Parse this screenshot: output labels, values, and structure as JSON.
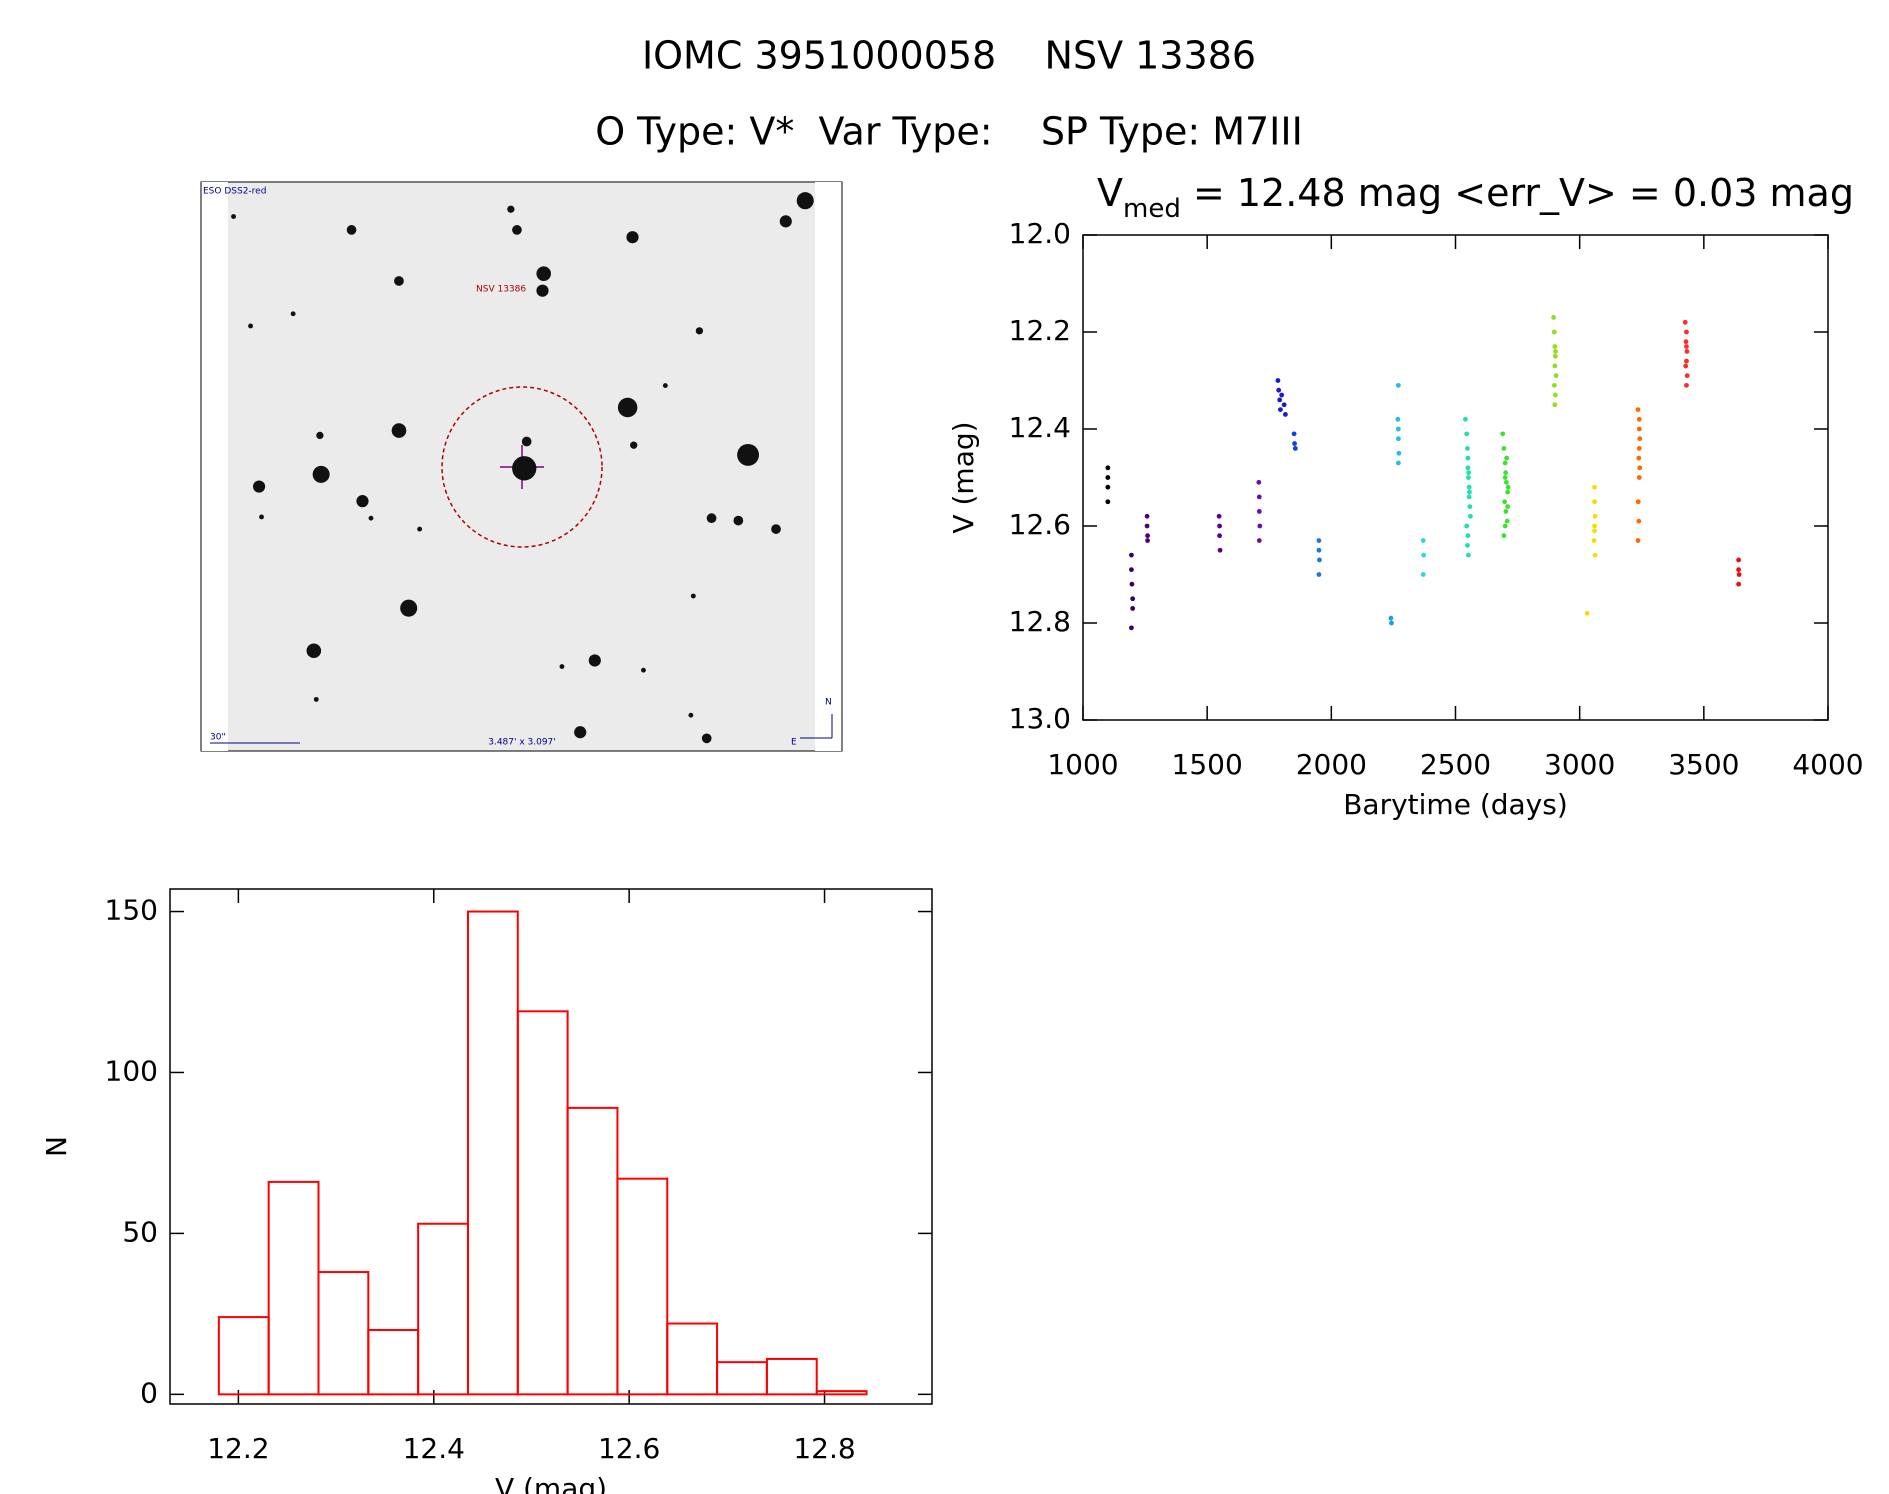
{
  "header": {
    "title": "IOMC 3951000058    NSV 13386",
    "subtitle": "O Type: V*  Var Type:    SP Type: M7III"
  },
  "finder_image": {
    "survey": "ESO DSS2-red",
    "target": "NSV 13386",
    "scale": "30\"",
    "size": "3.487' x 3.097'",
    "north": "N",
    "east": "E"
  },
  "chart_data": [
    {
      "type": "scatter",
      "title_parts": [
        "V",
        "med",
        " = 12.48 mag <err_V> = 0.03 mag"
      ],
      "x_label": "Barytime (days)",
      "y_label": "V (mag)",
      "xlim": [
        1000,
        4000
      ],
      "xticks": [
        1000,
        1500,
        2000,
        2500,
        3000,
        3500,
        4000
      ],
      "ylim": [
        13,
        12
      ],
      "yticks": [
        {
          "value": 12,
          "label": "12.0"
        },
        12.2,
        12.4,
        12.6,
        12.8,
        {
          "value": 13,
          "label": "13.0"
        }
      ],
      "series": [
        {
          "color": "#000000",
          "x": [
            1100,
            1100,
            1100,
            1100
          ],
          "values": [
            12.48,
            12.5,
            12.52,
            12.55
          ]
        },
        {
          "color": "#3a0060",
          "x": [
            1195,
            1195,
            1197,
            1200,
            1200,
            1195
          ],
          "values": [
            12.66,
            12.69,
            12.72,
            12.75,
            12.77,
            12.81
          ]
        },
        {
          "color": "#4b0082",
          "x": [
            1258,
            1258,
            1260,
            1260
          ],
          "values": [
            12.58,
            12.6,
            12.62,
            12.63
          ]
        },
        {
          "color": "#5a0095",
          "x": [
            1548,
            1550,
            1550,
            1552
          ],
          "values": [
            12.58,
            12.6,
            12.62,
            12.65
          ]
        },
        {
          "color": "#6a10a8",
          "x": [
            1708,
            1710,
            1710,
            1712,
            1710
          ],
          "values": [
            12.51,
            12.54,
            12.57,
            12.6,
            12.63
          ]
        },
        {
          "color": "#1a1ad0",
          "x": [
            1785,
            1788,
            1792,
            1795,
            1800,
            1810,
            1815
          ],
          "values": [
            12.3,
            12.32,
            12.34,
            12.36,
            12.33,
            12.35,
            12.37
          ]
        },
        {
          "color": "#1040e0",
          "x": [
            1850,
            1852,
            1855
          ],
          "values": [
            12.41,
            12.43,
            12.44
          ]
        },
        {
          "color": "#1a78e0",
          "x": [
            1950,
            1950,
            1952,
            1950
          ],
          "values": [
            12.63,
            12.65,
            12.67,
            12.7
          ]
        },
        {
          "color": "#1aa0e0",
          "x": [
            2240,
            2242
          ],
          "values": [
            12.79,
            12.8
          ]
        },
        {
          "color": "#20c0e8",
          "x": [
            2270,
            2268,
            2270,
            2270,
            2272,
            2270
          ],
          "values": [
            12.31,
            12.38,
            12.4,
            12.42,
            12.45,
            12.47
          ]
        },
        {
          "color": "#30d8d0",
          "x": [
            2370,
            2372,
            2370
          ],
          "values": [
            12.63,
            12.66,
            12.7
          ]
        },
        {
          "color": "#20e0b0",
          "x": [
            2540,
            2545,
            2548,
            2550,
            2550,
            2552,
            2555,
            2555,
            2558,
            2560,
            2545,
            2550,
            2553,
            2556,
            2548,
            2552
          ],
          "values": [
            12.38,
            12.41,
            12.44,
            12.46,
            12.48,
            12.5,
            12.52,
            12.54,
            12.56,
            12.58,
            12.6,
            12.62,
            12.49,
            12.53,
            12.64,
            12.66
          ]
        },
        {
          "color": "#40e030",
          "x": [
            2690,
            2695,
            2700,
            2702,
            2705,
            2710,
            2698,
            2703,
            2708,
            2712,
            2695,
            2700,
            2706,
            2710,
            2700
          ],
          "values": [
            12.41,
            12.44,
            12.47,
            12.49,
            12.51,
            12.53,
            12.55,
            12.57,
            12.59,
            12.52,
            12.62,
            12.5,
            12.46,
            12.56,
            12.6
          ]
        },
        {
          "color": "#90e020",
          "x": [
            2895,
            2898,
            2900,
            2902,
            2900,
            2905,
            2898,
            2902,
            2900,
            2903
          ],
          "values": [
            12.17,
            12.2,
            12.23,
            12.25,
            12.27,
            12.29,
            12.31,
            12.33,
            12.35,
            12.24
          ]
        },
        {
          "color": "#f0e000",
          "x": [
            3030,
            3060,
            3060,
            3062,
            3060,
            3058,
            3062,
            3060
          ],
          "values": [
            12.78,
            12.52,
            12.55,
            12.58,
            12.61,
            12.63,
            12.66,
            12.6
          ]
        },
        {
          "color": "#ff6a00",
          "x": [
            3235,
            3240,
            3240,
            3242,
            3240,
            3238,
            3242,
            3240,
            3236,
            3238,
            3235
          ],
          "values": [
            12.36,
            12.38,
            12.4,
            12.42,
            12.44,
            12.46,
            12.48,
            12.5,
            12.55,
            12.59,
            12.63
          ]
        },
        {
          "color": "#ff2a2a",
          "x": [
            3425,
            3430,
            3428,
            3432,
            3430,
            3427,
            3433,
            3430,
            3430
          ],
          "values": [
            12.18,
            12.2,
            12.22,
            12.24,
            12.26,
            12.27,
            12.29,
            12.31,
            12.23
          ]
        },
        {
          "color": "#e81010",
          "x": [
            3640,
            3640,
            3642,
            3640
          ],
          "values": [
            12.67,
            12.69,
            12.7,
            12.72
          ]
        }
      ]
    },
    {
      "type": "histogram",
      "x_label": "V (mag)",
      "y_label": "N",
      "color": "#ff0000",
      "bins": [
        12.18,
        12.231,
        12.282,
        12.333,
        12.384,
        12.435,
        12.486,
        12.537,
        12.588,
        12.639,
        12.69,
        12.741,
        12.792,
        12.843
      ],
      "values": [
        24,
        66,
        38,
        20,
        53,
        150,
        119,
        89,
        67,
        22,
        10,
        11,
        1
      ],
      "xlim": [
        12.13,
        12.91
      ],
      "xticks": [
        12.2,
        12.4,
        12.6,
        12.8
      ],
      "ylim": [
        -3,
        157
      ],
      "yticks": [
        0,
        50,
        100,
        150
      ]
    }
  ]
}
